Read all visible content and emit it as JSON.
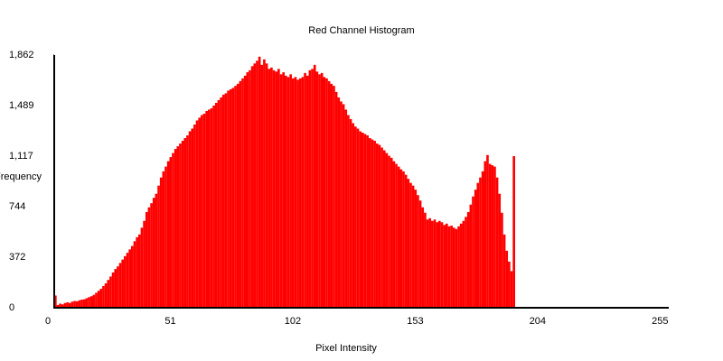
{
  "chart_data": {
    "type": "histogram",
    "title": "Red Channel Histogram",
    "x_label": "Pixel Intensity",
    "y_label": "Frequency",
    "color": "#ff0000",
    "bins": [
      0,
      1,
      2,
      3,
      4,
      5,
      6,
      7,
      8,
      9,
      10,
      11,
      12,
      13,
      14,
      15,
      16,
      17,
      18,
      19,
      20,
      21,
      22,
      23,
      24,
      25,
      26,
      27,
      28,
      29,
      30,
      31,
      32,
      33,
      34,
      35,
      36,
      37,
      38,
      39,
      40,
      41,
      42,
      43,
      44,
      45,
      46,
      47,
      48,
      49,
      50,
      51,
      52,
      53,
      54,
      55,
      56,
      57,
      58,
      59,
      60,
      61,
      62,
      63,
      64,
      65,
      66,
      67,
      68,
      69,
      70,
      71,
      72,
      73,
      74,
      75,
      76,
      77,
      78,
      79,
      80,
      81,
      82,
      83,
      84,
      85,
      86,
      87,
      88,
      89,
      90,
      91,
      92,
      93,
      94,
      95,
      96,
      97,
      98,
      99,
      100,
      101,
      102,
      103,
      104,
      105,
      106,
      107,
      108,
      109,
      110,
      111,
      112,
      113,
      114,
      115,
      116,
      117,
      118,
      119,
      120,
      121,
      122,
      123,
      124,
      125,
      126,
      127,
      128,
      129,
      130,
      131,
      132,
      133,
      134,
      135,
      136,
      137,
      138,
      139,
      140,
      141,
      142,
      143,
      144,
      145,
      146,
      147,
      148,
      149,
      150,
      151,
      152,
      153,
      154,
      155,
      156,
      157,
      158,
      159,
      160,
      161,
      162,
      163,
      164,
      165,
      166,
      167,
      168,
      169,
      170,
      171,
      172,
      173,
      174,
      175,
      176,
      177,
      178,
      179,
      180,
      181,
      182,
      183,
      184,
      185,
      186,
      187,
      188,
      189,
      190,
      191,
      192,
      193,
      194,
      195,
      196,
      197,
      198,
      199,
      200,
      201,
      202,
      203,
      204,
      205,
      206,
      207,
      208,
      209,
      210,
      211,
      212,
      213,
      214,
      215,
      216,
      217,
      218,
      219,
      220,
      221,
      222,
      223,
      224,
      225,
      226,
      227,
      228,
      229,
      230,
      231,
      232,
      233,
      234,
      235,
      236,
      237,
      238,
      239,
      240,
      241,
      242,
      243,
      244,
      245,
      246,
      247,
      248,
      249,
      250,
      251,
      252,
      253,
      254,
      255,
      256
    ],
    "values": [
      90,
      20,
      30,
      25,
      35,
      40,
      35,
      45,
      50,
      48,
      55,
      60,
      62,
      70,
      78,
      85,
      95,
      110,
      125,
      140,
      160,
      180,
      205,
      230,
      260,
      285,
      305,
      330,
      355,
      380,
      405,
      430,
      455,
      490,
      520,
      540,
      590,
      640,
      705,
      740,
      770,
      810,
      840,
      900,
      960,
      1005,
      1040,
      1080,
      1110,
      1140,
      1170,
      1190,
      1210,
      1230,
      1250,
      1270,
      1300,
      1320,
      1350,
      1380,
      1400,
      1420,
      1430,
      1450,
      1460,
      1470,
      1490,
      1510,
      1530,
      1550,
      1570,
      1580,
      1600,
      1610,
      1620,
      1635,
      1650,
      1670,
      1690,
      1710,
      1735,
      1750,
      1780,
      1800,
      1820,
      1850,
      1790,
      1830,
      1800,
      1760,
      1770,
      1750,
      1740,
      1760,
      1720,
      1735,
      1710,
      1700,
      1720,
      1690,
      1700,
      1680,
      1690,
      1700,
      1730,
      1710,
      1750,
      1760,
      1790,
      1740,
      1720,
      1730,
      1700,
      1690,
      1670,
      1650,
      1635,
      1590,
      1550,
      1520,
      1500,
      1460,
      1420,
      1390,
      1360,
      1335,
      1320,
      1300,
      1290,
      1280,
      1270,
      1250,
      1240,
      1230,
      1210,
      1200,
      1180,
      1160,
      1140,
      1120,
      1105,
      1080,
      1060,
      1040,
      1020,
      1005,
      980,
      950,
      920,
      900,
      870,
      830,
      790,
      740,
      700,
      650,
      660,
      640,
      650,
      630,
      640,
      630,
      610,
      620,
      600,
      605,
      590,
      580,
      600,
      620,
      640,
      670,
      705,
      760,
      820,
      870,
      920,
      960,
      1005,
      1080,
      1125,
      1060,
      1050,
      1040,
      960,
      840,
      700,
      540,
      420,
      340,
      270,
      1117,
      0,
      0,
      0,
      0,
      0,
      0,
      0,
      0,
      0,
      0,
      0,
      0,
      0,
      0,
      0,
      0,
      0,
      0,
      0,
      0,
      0,
      0,
      0,
      0,
      0,
      0,
      0,
      0,
      0,
      0,
      0,
      0,
      0,
      0,
      0,
      0,
      0,
      0,
      0,
      0,
      0,
      0,
      0,
      0,
      0,
      0,
      0,
      0,
      0,
      0,
      0,
      0,
      0,
      0,
      0,
      0,
      0,
      0,
      0,
      0,
      0,
      0,
      0,
      0
    ],
    "xlim": [
      0,
      256
    ],
    "xticks": [
      0,
      51,
      102,
      153,
      204,
      255
    ],
    "ylim": [
      0,
      1862
    ],
    "yticks": [
      0,
      372,
      744,
      {
        "value": 1117,
        "label": "1,117"
      },
      {
        "value": 1489,
        "label": "1,489"
      },
      {
        "value": 1862,
        "label": "1,862"
      }
    ]
  }
}
